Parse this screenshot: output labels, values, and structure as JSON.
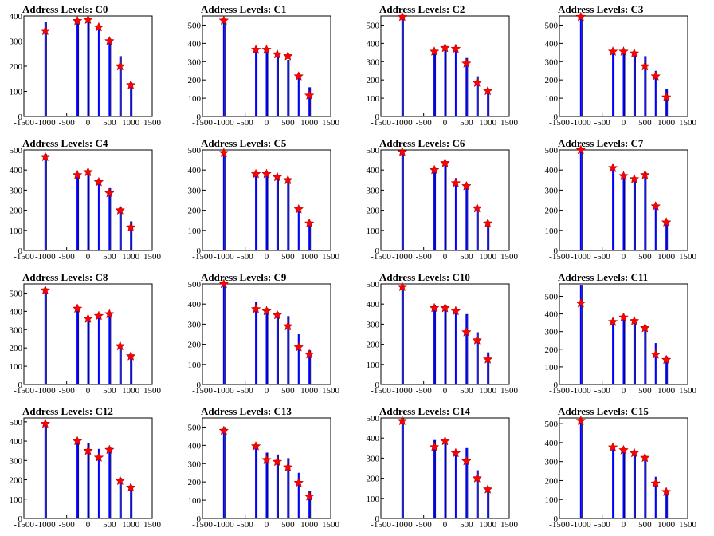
{
  "colors": {
    "bar": "#0000ff",
    "bar_dark": "#000066",
    "marker": "#ff0000",
    "axis": "#000000",
    "background": "#ffffff"
  },
  "chart_data": [
    {
      "type": "bar",
      "title": "Address Levels: C0",
      "xlim": [
        -1500,
        1500
      ],
      "ylim": [
        0,
        400
      ],
      "x_ticks": [
        -1500,
        -1000,
        -500,
        0,
        500,
        1000,
        1500
      ],
      "y_ticks": [
        0,
        100,
        200,
        300,
        400
      ],
      "peaks": [
        {
          "x": -1000,
          "height": 375,
          "marker": 340
        },
        {
          "x": -250,
          "height": 370,
          "marker": 380
        },
        {
          "x": 0,
          "height": 395,
          "marker": 385
        },
        {
          "x": 250,
          "height": 350,
          "marker": 355
        },
        {
          "x": 500,
          "height": 310,
          "marker": 300
        },
        {
          "x": 750,
          "height": 240,
          "marker": 200
        },
        {
          "x": 1000,
          "height": 135,
          "marker": 125
        }
      ]
    },
    {
      "type": "bar",
      "title": "Address Levels: C1",
      "xlim": [
        -1500,
        1500
      ],
      "ylim": [
        0,
        550
      ],
      "x_ticks": [
        -1500,
        -1000,
        -500,
        0,
        500,
        1000,
        1500
      ],
      "y_ticks": [
        0,
        100,
        200,
        300,
        400,
        500
      ],
      "peaks": [
        {
          "x": -1000,
          "height": 530,
          "marker": 525
        },
        {
          "x": -250,
          "height": 365,
          "marker": 365
        },
        {
          "x": 0,
          "height": 370,
          "marker": 365
        },
        {
          "x": 250,
          "height": 345,
          "marker": 340
        },
        {
          "x": 500,
          "height": 310,
          "marker": 330
        },
        {
          "x": 750,
          "height": 240,
          "marker": 220
        },
        {
          "x": 1000,
          "height": 160,
          "marker": 115
        }
      ]
    },
    {
      "type": "bar",
      "title": "Address Levels: C2",
      "xlim": [
        -1500,
        1500
      ],
      "ylim": [
        0,
        550
      ],
      "x_ticks": [
        -1500,
        -1000,
        -500,
        0,
        500,
        1000,
        1500
      ],
      "y_ticks": [
        0,
        100,
        200,
        300,
        400,
        500
      ],
      "peaks": [
        {
          "x": -1000,
          "height": 555,
          "marker": 545
        },
        {
          "x": -250,
          "height": 360,
          "marker": 355
        },
        {
          "x": 0,
          "height": 380,
          "marker": 375
        },
        {
          "x": 250,
          "height": 385,
          "marker": 370
        },
        {
          "x": 500,
          "height": 320,
          "marker": 290
        },
        {
          "x": 750,
          "height": 220,
          "marker": 185
        },
        {
          "x": 1000,
          "height": 150,
          "marker": 140
        }
      ]
    },
    {
      "type": "bar",
      "title": "Address Levels: C3",
      "xlim": [
        -1500,
        1500
      ],
      "ylim": [
        0,
        550
      ],
      "x_ticks": [
        -1500,
        -1000,
        -500,
        0,
        500,
        1000,
        1500
      ],
      "y_ticks": [
        0,
        100,
        200,
        300,
        400,
        500
      ],
      "peaks": [
        {
          "x": -1000,
          "height": 555,
          "marker": 545
        },
        {
          "x": -250,
          "height": 365,
          "marker": 355
        },
        {
          "x": 0,
          "height": 350,
          "marker": 355
        },
        {
          "x": 250,
          "height": 350,
          "marker": 345
        },
        {
          "x": 500,
          "height": 330,
          "marker": 275
        },
        {
          "x": 750,
          "height": 250,
          "marker": 220
        },
        {
          "x": 1000,
          "height": 150,
          "marker": 105
        }
      ]
    },
    {
      "type": "bar",
      "title": "Address Levels: C4",
      "xlim": [
        -1500,
        1500
      ],
      "ylim": [
        0,
        500
      ],
      "x_ticks": [
        -1500,
        -1000,
        -500,
        0,
        500,
        1000,
        1500
      ],
      "y_ticks": [
        0,
        100,
        200,
        300,
        400,
        500
      ],
      "peaks": [
        {
          "x": -1000,
          "height": 480,
          "marker": 465
        },
        {
          "x": -250,
          "height": 380,
          "marker": 375
        },
        {
          "x": 0,
          "height": 395,
          "marker": 390
        },
        {
          "x": 250,
          "height": 350,
          "marker": 340
        },
        {
          "x": 500,
          "height": 310,
          "marker": 285
        },
        {
          "x": 750,
          "height": 215,
          "marker": 200
        },
        {
          "x": 1000,
          "height": 145,
          "marker": 115
        }
      ]
    },
    {
      "type": "bar",
      "title": "Address Levels: C5",
      "xlim": [
        -1500,
        1500
      ],
      "ylim": [
        0,
        500
      ],
      "x_ticks": [
        -1500,
        -1000,
        -500,
        0,
        500,
        1000,
        1500
      ],
      "y_ticks": [
        0,
        100,
        200,
        300,
        400,
        500
      ],
      "peaks": [
        {
          "x": -1000,
          "height": 490,
          "marker": 485
        },
        {
          "x": -250,
          "height": 390,
          "marker": 380
        },
        {
          "x": 0,
          "height": 385,
          "marker": 380
        },
        {
          "x": 250,
          "height": 370,
          "marker": 365
        },
        {
          "x": 500,
          "height": 360,
          "marker": 350
        },
        {
          "x": 750,
          "height": 215,
          "marker": 205
        },
        {
          "x": 1000,
          "height": 140,
          "marker": 135
        }
      ]
    },
    {
      "type": "bar",
      "title": "Address Levels: C6",
      "xlim": [
        -1500,
        1500
      ],
      "ylim": [
        0,
        500
      ],
      "x_ticks": [
        -1500,
        -1000,
        -500,
        0,
        500,
        1000,
        1500
      ],
      "y_ticks": [
        0,
        100,
        200,
        300,
        400,
        500
      ],
      "peaks": [
        {
          "x": -1000,
          "height": 500,
          "marker": 490
        },
        {
          "x": -250,
          "height": 410,
          "marker": 400
        },
        {
          "x": 0,
          "height": 440,
          "marker": 435
        },
        {
          "x": 250,
          "height": 360,
          "marker": 335
        },
        {
          "x": 500,
          "height": 330,
          "marker": 320
        },
        {
          "x": 750,
          "height": 220,
          "marker": 210
        },
        {
          "x": 1000,
          "height": 145,
          "marker": 135
        }
      ]
    },
    {
      "type": "bar",
      "title": "Address Levels: C7",
      "xlim": [
        -1500,
        1500
      ],
      "ylim": [
        0,
        500
      ],
      "x_ticks": [
        -1500,
        -1000,
        -500,
        0,
        500,
        1000,
        1500
      ],
      "y_ticks": [
        0,
        100,
        200,
        300,
        400,
        500
      ],
      "peaks": [
        {
          "x": -1000,
          "height": 510,
          "marker": 505
        },
        {
          "x": -250,
          "height": 420,
          "marker": 410
        },
        {
          "x": 0,
          "height": 380,
          "marker": 370
        },
        {
          "x": 250,
          "height": 360,
          "marker": 355
        },
        {
          "x": 500,
          "height": 390,
          "marker": 375
        },
        {
          "x": 750,
          "height": 230,
          "marker": 220
        },
        {
          "x": 1000,
          "height": 150,
          "marker": 140
        }
      ]
    },
    {
      "type": "bar",
      "title": "Address Levels: C8",
      "xlim": [
        -1500,
        1500
      ],
      "ylim": [
        0,
        550
      ],
      "x_ticks": [
        -1500,
        -1000,
        -500,
        0,
        500,
        1000,
        1500
      ],
      "y_ticks": [
        0,
        100,
        200,
        300,
        400,
        500
      ],
      "peaks": [
        {
          "x": -1000,
          "height": 525,
          "marker": 515
        },
        {
          "x": -250,
          "height": 420,
          "marker": 415
        },
        {
          "x": 0,
          "height": 370,
          "marker": 360
        },
        {
          "x": 250,
          "height": 380,
          "marker": 375
        },
        {
          "x": 500,
          "height": 390,
          "marker": 385
        },
        {
          "x": 750,
          "height": 220,
          "marker": 210
        },
        {
          "x": 1000,
          "height": 160,
          "marker": 155
        }
      ]
    },
    {
      "type": "bar",
      "title": "Address Levels: C9",
      "xlim": [
        -1500,
        1500
      ],
      "ylim": [
        0,
        500
      ],
      "x_ticks": [
        -1500,
        -1000,
        -500,
        0,
        500,
        1000,
        1500
      ],
      "y_ticks": [
        0,
        100,
        200,
        300,
        400,
        500
      ],
      "peaks": [
        {
          "x": -1000,
          "height": 520,
          "marker": 510
        },
        {
          "x": -250,
          "height": 410,
          "marker": 375
        },
        {
          "x": 0,
          "height": 380,
          "marker": 365
        },
        {
          "x": 250,
          "height": 360,
          "marker": 345
        },
        {
          "x": 500,
          "height": 340,
          "marker": 290
        },
        {
          "x": 750,
          "height": 250,
          "marker": 185
        },
        {
          "x": 1000,
          "height": 170,
          "marker": 150
        }
      ]
    },
    {
      "type": "bar",
      "title": "Address Levels: C10",
      "xlim": [
        -1500,
        1500
      ],
      "ylim": [
        0,
        500
      ],
      "x_ticks": [
        -1500,
        -1000,
        -500,
        0,
        500,
        1000,
        1500
      ],
      "y_ticks": [
        0,
        100,
        200,
        300,
        400,
        500
      ],
      "peaks": [
        {
          "x": -1000,
          "height": 495,
          "marker": 485
        },
        {
          "x": -250,
          "height": 395,
          "marker": 380
        },
        {
          "x": 0,
          "height": 395,
          "marker": 380
        },
        {
          "x": 250,
          "height": 370,
          "marker": 365
        },
        {
          "x": 500,
          "height": 350,
          "marker": 260
        },
        {
          "x": 750,
          "height": 260,
          "marker": 220
        },
        {
          "x": 1000,
          "height": 160,
          "marker": 125
        }
      ]
    },
    {
      "type": "bar",
      "title": "Address Levels: C11",
      "xlim": [
        -1500,
        1500
      ],
      "ylim": [
        0,
        570
      ],
      "x_ticks": [
        -1500,
        -1000,
        -500,
        0,
        500,
        1000,
        1500
      ],
      "y_ticks": [
        0,
        100,
        200,
        300,
        400,
        500
      ],
      "peaks": [
        {
          "x": -1000,
          "height": 565,
          "marker": 460
        },
        {
          "x": -250,
          "height": 365,
          "marker": 355
        },
        {
          "x": 0,
          "height": 390,
          "marker": 380
        },
        {
          "x": 250,
          "height": 360,
          "marker": 360
        },
        {
          "x": 500,
          "height": 335,
          "marker": 320
        },
        {
          "x": 750,
          "height": 235,
          "marker": 170
        },
        {
          "x": 1000,
          "height": 160,
          "marker": 140
        }
      ]
    },
    {
      "type": "bar",
      "title": "Address Levels: C12",
      "xlim": [
        -1500,
        1500
      ],
      "ylim": [
        0,
        520
      ],
      "x_ticks": [
        -1500,
        -1000,
        -500,
        0,
        500,
        1000,
        1500
      ],
      "y_ticks": [
        0,
        100,
        200,
        300,
        400,
        500
      ],
      "peaks": [
        {
          "x": -1000,
          "height": 500,
          "marker": 490
        },
        {
          "x": -250,
          "height": 410,
          "marker": 400
        },
        {
          "x": 0,
          "height": 390,
          "marker": 350
        },
        {
          "x": 250,
          "height": 360,
          "marker": 315
        },
        {
          "x": 500,
          "height": 370,
          "marker": 355
        },
        {
          "x": 750,
          "height": 210,
          "marker": 195
        },
        {
          "x": 1000,
          "height": 170,
          "marker": 160
        }
      ]
    },
    {
      "type": "bar",
      "title": "Address Levels: C13",
      "xlim": [
        -1500,
        1500
      ],
      "ylim": [
        0,
        550
      ],
      "x_ticks": [
        -1500,
        -1000,
        -500,
        0,
        500,
        1000,
        1500
      ],
      "y_ticks": [
        0,
        100,
        200,
        300,
        400,
        500
      ],
      "peaks": [
        {
          "x": -1000,
          "height": 500,
          "marker": 480
        },
        {
          "x": -250,
          "height": 410,
          "marker": 395
        },
        {
          "x": 0,
          "height": 360,
          "marker": 320
        },
        {
          "x": 250,
          "height": 350,
          "marker": 310
        },
        {
          "x": 500,
          "height": 330,
          "marker": 280
        },
        {
          "x": 750,
          "height": 250,
          "marker": 195
        },
        {
          "x": 1000,
          "height": 150,
          "marker": 120
        }
      ]
    },
    {
      "type": "bar",
      "title": "Address Levels: C14",
      "xlim": [
        -1500,
        1500
      ],
      "ylim": [
        0,
        500
      ],
      "x_ticks": [
        -1500,
        -1000,
        -500,
        0,
        500,
        1000,
        1500
      ],
      "y_ticks": [
        0,
        100,
        200,
        300,
        400,
        500
      ],
      "peaks": [
        {
          "x": -1000,
          "height": 500,
          "marker": 485
        },
        {
          "x": -250,
          "height": 390,
          "marker": 355
        },
        {
          "x": 0,
          "height": 390,
          "marker": 385
        },
        {
          "x": 250,
          "height": 340,
          "marker": 325
        },
        {
          "x": 500,
          "height": 350,
          "marker": 285
        },
        {
          "x": 750,
          "height": 240,
          "marker": 200
        },
        {
          "x": 1000,
          "height": 150,
          "marker": 145
        }
      ]
    },
    {
      "type": "bar",
      "title": "Address Levels: C15",
      "xlim": [
        -1500,
        1500
      ],
      "ylim": [
        0,
        530
      ],
      "x_ticks": [
        -1500,
        -1000,
        -500,
        0,
        500,
        1000,
        1500
      ],
      "y_ticks": [
        0,
        100,
        200,
        300,
        400,
        500
      ],
      "peaks": [
        {
          "x": -1000,
          "height": 520,
          "marker": 515
        },
        {
          "x": -250,
          "height": 380,
          "marker": 375
        },
        {
          "x": 0,
          "height": 370,
          "marker": 360
        },
        {
          "x": 250,
          "height": 350,
          "marker": 345
        },
        {
          "x": 500,
          "height": 330,
          "marker": 320
        },
        {
          "x": 750,
          "height": 220,
          "marker": 185
        },
        {
          "x": 1000,
          "height": 150,
          "marker": 140
        }
      ]
    }
  ]
}
